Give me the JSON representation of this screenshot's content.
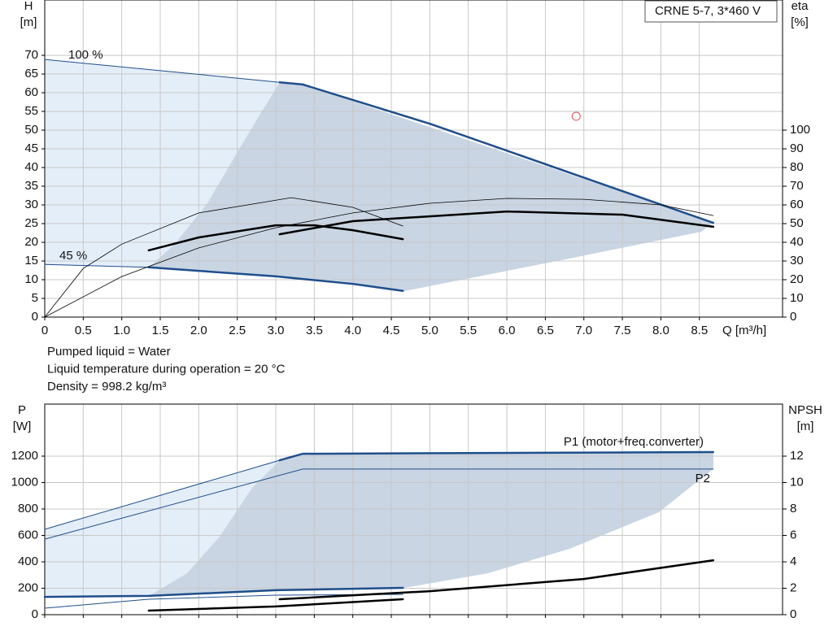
{
  "chart_data": [
    {
      "type": "line",
      "y_label": "H",
      "y_unit": "[m]",
      "y2_label": "eta",
      "y2_unit": "[%]",
      "x_label": "Q [m³/h]",
      "legend": "CRNE 5-7, 3*460 V",
      "notes": [
        "Pumped liquid = Water",
        "Liquid temperature during operation = 20 °C",
        "Density = 998.2 kg/m³"
      ],
      "xlim": [
        0,
        9.58
      ],
      "ylim": [
        0,
        84.8
      ],
      "y2lim": [
        0,
        169.6
      ],
      "xticks": [
        0,
        0.5,
        {
          "value": 1,
          "label": "1.0"
        },
        1.5,
        {
          "value": 2,
          "label": "2.0"
        },
        2.5,
        {
          "value": 3,
          "label": "3.0"
        },
        3.5,
        {
          "value": 4,
          "label": "4.0"
        },
        4.5,
        {
          "value": 5,
          "label": "5.0"
        },
        5.5,
        {
          "value": 6,
          "label": "6.0"
        },
        6.5,
        {
          "value": 7,
          "label": "7.0"
        },
        7.5,
        {
          "value": 8,
          "label": "8.0"
        },
        8.5
      ],
      "x_tick_labels": true,
      "yticks": [
        0,
        5,
        10,
        15,
        20,
        25,
        30,
        35,
        40,
        45,
        50,
        55,
        60,
        65,
        70
      ],
      "y2ticks": [
        0,
        10,
        20,
        30,
        40,
        50,
        60,
        70,
        80,
        90,
        100
      ],
      "grid": true,
      "series": [
        {
          "name": "100 %",
          "color": "#1f4e8c",
          "width": 1,
          "x": [
            0,
            3.05
          ],
          "values": [
            68.9,
            62.8
          ]
        },
        {
          "color": "#1f4e8c",
          "width": 2.5,
          "x": [
            3.05,
            3.35,
            5,
            8.68
          ],
          "values": [
            62.8,
            62.2,
            51.7,
            25.2
          ]
        },
        {
          "name": "45 %",
          "color": "#1f4e8c",
          "width": 1,
          "x": [
            0,
            1.35
          ],
          "values": [
            14.1,
            13.3
          ]
        },
        {
          "color": "#1f4e8c",
          "width": 2.5,
          "x": [
            1.35,
            3,
            4,
            4.65
          ],
          "values": [
            13.3,
            10.9,
            8.9,
            7
          ]
        },
        {
          "color": "#000000",
          "width": 0.8,
          "axis": "y2",
          "x": [
            0,
            0.5,
            1,
            2,
            3.2,
            4,
            4.65
          ],
          "values": [
            0,
            26,
            39,
            55.7,
            63.9,
            58.7,
            48.7
          ]
        },
        {
          "color": "#000000",
          "width": 0.8,
          "axis": "y2",
          "x": [
            0,
            1,
            2,
            3,
            4,
            5,
            6,
            7,
            8,
            8.68
          ],
          "values": [
            0,
            21.7,
            37,
            47.8,
            55.7,
            60.9,
            63.5,
            63,
            60,
            54.3
          ]
        },
        {
          "color": "#000000",
          "width": 2.5,
          "axis": "y2",
          "x": [
            1.35,
            2,
            3,
            3.5,
            4,
            4.65
          ],
          "values": [
            35.7,
            42.6,
            49.1,
            49.1,
            46.5,
            41.7
          ]
        },
        {
          "color": "#000000",
          "width": 2.5,
          "axis": "y2",
          "x": [
            3.05,
            4,
            6,
            7.5,
            8.68
          ],
          "values": [
            44.3,
            51.3,
            56.5,
            54.8,
            48.3
          ]
        }
      ],
      "markers": [
        {
          "x": 6.9,
          "y": 53.7,
          "color": "#e05050"
        }
      ]
    },
    {
      "type": "line",
      "y_label": "P",
      "y_unit": "[W]",
      "y2_label": "NPSH",
      "y2_unit": "[m]",
      "xlim": [
        0,
        9.58
      ],
      "ylim": [
        0,
        1594
      ],
      "y2lim": [
        0,
        15.94
      ],
      "xticks": [
        0,
        0.5,
        1,
        1.5,
        2,
        2.5,
        3,
        3.5,
        4,
        4.5,
        5,
        5.5,
        6,
        6.5,
        7,
        7.5,
        8,
        8.5
      ],
      "x_tick_labels": false,
      "yticks": [
        0,
        200,
        400,
        600,
        800,
        1000,
        1200
      ],
      "y2ticks": [
        0,
        2,
        4,
        6,
        8,
        10,
        12
      ],
      "grid": true,
      "series": [
        {
          "color": "#1f4e8c",
          "width": 1,
          "x": [
            0,
            3.05
          ],
          "values": [
            646,
            1169
          ]
        },
        {
          "name": "P1 (motor+freq.converter)",
          "color": "#1f4e8c",
          "width": 2.5,
          "x": [
            3.05,
            3.35,
            8.68
          ],
          "values": [
            1169,
            1218,
            1231
          ]
        },
        {
          "name": "P2",
          "color": "#1f4e8c",
          "width": 1,
          "x": [
            0,
            3.35,
            8.68
          ],
          "values": [
            572,
            1102,
            1102
          ]
        },
        {
          "color": "#1f4e8c",
          "width": 2.5,
          "x": [
            0,
            1.35,
            3,
            4.65
          ],
          "values": [
            135,
            142,
            185,
            203
          ]
        },
        {
          "color": "#1f4e8c",
          "width": 1,
          "x": [
            0,
            1.35,
            3,
            4.65
          ],
          "values": [
            49,
            117,
            148,
            154
          ]
        },
        {
          "color": "#000000",
          "width": 2.5,
          "axis": "y2",
          "x": [
            1.35,
            3,
            4.65
          ],
          "values": [
            0.31,
            0.62,
            1.17
          ]
        },
        {
          "color": "#000000",
          "width": 2.5,
          "axis": "y2",
          "x": [
            3.05,
            5,
            7,
            8.68
          ],
          "values": [
            1.17,
            1.78,
            2.7,
            4.12
          ]
        }
      ]
    }
  ]
}
